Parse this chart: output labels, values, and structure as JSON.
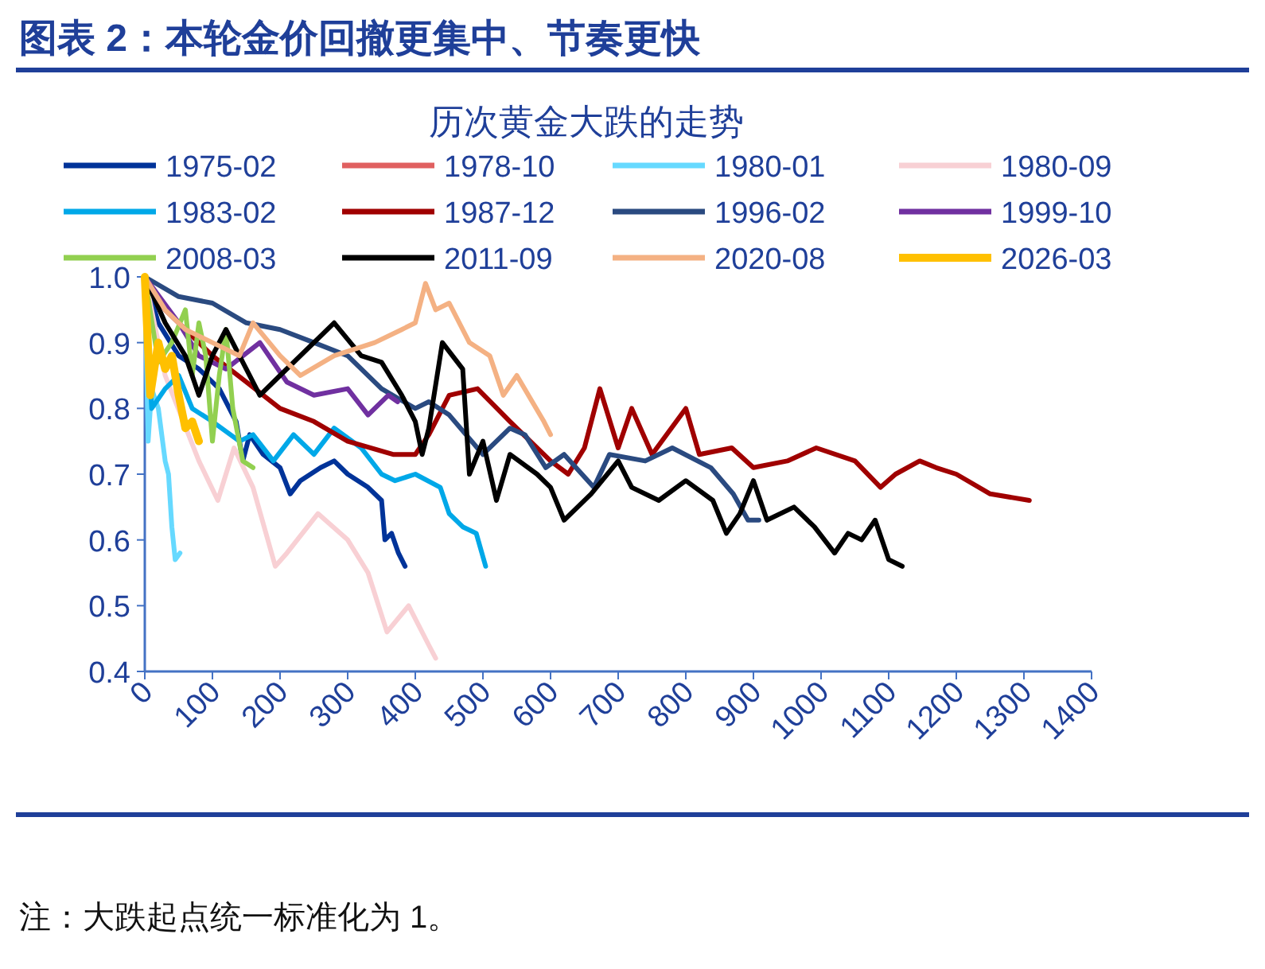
{
  "chart_data": {
    "type": "line",
    "title": "图表 2：本轮金价回撤更集中、节奏更快",
    "subtitle": "历次黄金大跌的走势",
    "annotations": [
      "注：大跌起点统一标准化为 1。"
    ],
    "xlim": [
      0,
      1400
    ],
    "xticks": [
      0,
      100,
      200,
      300,
      400,
      500,
      600,
      700,
      800,
      900,
      1000,
      1100,
      1200,
      1300,
      1400
    ],
    "ylim": [
      0.4,
      1.0
    ],
    "yticks": [
      0.4,
      0.5,
      0.6,
      0.7,
      0.8,
      0.9,
      {
        "value": 1.0,
        "label": "1.0"
      }
    ],
    "grid": false,
    "legend": "top",
    "marker": "none",
    "line_style": "solid",
    "series": [
      {
        "name": "1975-02",
        "color": "#003399",
        "x": [
          0,
          20,
          50,
          80,
          110,
          135,
          145,
          155,
          175,
          200,
          215,
          230,
          260,
          280,
          300,
          330,
          350,
          355,
          365,
          375,
          385
        ],
        "values": [
          1.0,
          0.93,
          0.88,
          0.86,
          0.83,
          0.78,
          0.72,
          0.76,
          0.73,
          0.71,
          0.67,
          0.69,
          0.71,
          0.72,
          0.7,
          0.68,
          0.66,
          0.6,
          0.61,
          0.58,
          0.56
        ]
      },
      {
        "name": "1978-10",
        "color": "#e06060"
      },
      {
        "name": "1980-01",
        "color": "#66d9ff",
        "x": [
          0,
          5,
          10,
          20,
          30,
          35,
          40,
          45,
          52
        ],
        "values": [
          1.0,
          0.75,
          0.83,
          0.8,
          0.72,
          0.7,
          0.62,
          0.57,
          0.58
        ]
      },
      {
        "name": "1980-09",
        "color": "#f8d0d4",
        "x": [
          0,
          30,
          80,
          108,
          132,
          160,
          193,
          210,
          256,
          300,
          330,
          358,
          390,
          420,
          430
        ],
        "values": [
          1.0,
          0.85,
          0.72,
          0.66,
          0.74,
          0.68,
          0.56,
          0.58,
          0.64,
          0.6,
          0.55,
          0.46,
          0.5,
          0.44,
          0.42
        ]
      },
      {
        "name": "1983-02",
        "color": "#00a8e8",
        "x": [
          0,
          10,
          30,
          50,
          70,
          100,
          140,
          160,
          190,
          220,
          250,
          280,
          320,
          350,
          370,
          400,
          437,
          450,
          470,
          490,
          504
        ],
        "values": [
          1.0,
          0.8,
          0.83,
          0.85,
          0.8,
          0.78,
          0.75,
          0.76,
          0.72,
          0.76,
          0.73,
          0.77,
          0.74,
          0.7,
          0.69,
          0.7,
          0.68,
          0.64,
          0.62,
          0.61,
          0.56
        ]
      },
      {
        "name": "1987-12",
        "color": "#a00000",
        "x": [
          0,
          30,
          100,
          150,
          200,
          250,
          300,
          367,
          400,
          420,
          450,
          492,
          540,
          600,
          626,
          650,
          673,
          700,
          720,
          750,
          800,
          820,
          868,
          900,
          950,
          993,
          1050,
          1088,
          1110,
          1146,
          1170,
          1200,
          1250,
          1308
        ],
        "values": [
          1.0,
          0.95,
          0.88,
          0.84,
          0.8,
          0.78,
          0.75,
          0.73,
          0.73,
          0.76,
          0.82,
          0.83,
          0.78,
          0.72,
          0.7,
          0.74,
          0.83,
          0.74,
          0.8,
          0.73,
          0.8,
          0.73,
          0.74,
          0.71,
          0.72,
          0.74,
          0.72,
          0.68,
          0.7,
          0.72,
          0.71,
          0.7,
          0.67,
          0.66
        ]
      },
      {
        "name": "1996-02",
        "color": "#2a4a80",
        "x": [
          0,
          50,
          100,
          150,
          200,
          250,
          300,
          350,
          400,
          420,
          450,
          500,
          540,
          562,
          593,
          620,
          664,
          687,
          740,
          780,
          837,
          870,
          892,
          908
        ],
        "values": [
          1.0,
          0.97,
          0.96,
          0.93,
          0.92,
          0.9,
          0.88,
          0.83,
          0.8,
          0.81,
          0.79,
          0.73,
          0.77,
          0.76,
          0.71,
          0.73,
          0.68,
          0.73,
          0.72,
          0.74,
          0.71,
          0.67,
          0.63,
          0.63
        ]
      },
      {
        "name": "1999-10",
        "color": "#7030a0",
        "x": [
          0,
          50,
          80,
          120,
          170,
          210,
          250,
          300,
          330,
          360,
          374
        ],
        "values": [
          1.0,
          0.93,
          0.88,
          0.86,
          0.9,
          0.84,
          0.82,
          0.83,
          0.79,
          0.82,
          0.81
        ]
      },
      {
        "name": "2008-03",
        "color": "#92d050",
        "x": [
          0,
          20,
          40,
          60,
          70,
          80,
          90,
          100,
          110,
          120,
          130,
          145,
          160
        ],
        "values": [
          1.0,
          0.87,
          0.9,
          0.95,
          0.85,
          0.93,
          0.88,
          0.75,
          0.85,
          0.92,
          0.8,
          0.72,
          0.71
        ]
      },
      {
        "name": "2011-09",
        "color": "#000000",
        "x": [
          0,
          30,
          60,
          80,
          100,
          120,
          150,
          170,
          200,
          280,
          320,
          350,
          380,
          400,
          410,
          420,
          440,
          470,
          480,
          500,
          520,
          540,
          580,
          600,
          620,
          660,
          700,
          720,
          760,
          800,
          840,
          860,
          880,
          900,
          920,
          960,
          990,
          1020,
          1040,
          1060,
          1080,
          1100,
          1120
        ],
        "values": [
          1.0,
          0.93,
          0.88,
          0.82,
          0.88,
          0.92,
          0.86,
          0.82,
          0.85,
          0.93,
          0.88,
          0.87,
          0.82,
          0.78,
          0.73,
          0.77,
          0.9,
          0.86,
          0.7,
          0.75,
          0.66,
          0.73,
          0.7,
          0.68,
          0.63,
          0.67,
          0.72,
          0.68,
          0.66,
          0.69,
          0.66,
          0.61,
          0.64,
          0.69,
          0.63,
          0.65,
          0.62,
          0.58,
          0.61,
          0.6,
          0.63,
          0.57,
          0.56
        ]
      },
      {
        "name": "2020-08",
        "color": "#f4b183",
        "x": [
          0,
          30,
          60,
          100,
          140,
          160,
          200,
          230,
          280,
          340,
          380,
          400,
          415,
          430,
          450,
          480,
          510,
          530,
          550,
          590,
          600
        ],
        "values": [
          1.0,
          0.95,
          0.92,
          0.9,
          0.88,
          0.93,
          0.88,
          0.85,
          0.88,
          0.9,
          0.92,
          0.93,
          0.99,
          0.95,
          0.96,
          0.9,
          0.88,
          0.82,
          0.85,
          0.78,
          0.76
        ]
      },
      {
        "name": "2026-03",
        "color": "#ffc000",
        "x": [
          0,
          8,
          20,
          30,
          40,
          50,
          60,
          70,
          80
        ],
        "values": [
          1.0,
          0.82,
          0.9,
          0.86,
          0.88,
          0.82,
          0.77,
          0.78,
          0.75
        ]
      }
    ]
  }
}
